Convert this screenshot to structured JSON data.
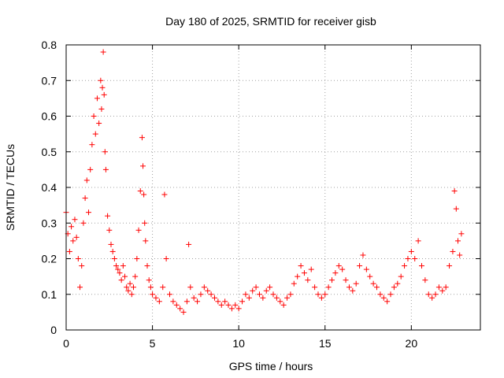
{
  "chart_data": {
    "type": "scatter",
    "title": "Day 180 of 2025, SRMTID for receiver gisb",
    "xlabel": "GPS time / hours",
    "ylabel": "SRMTID / TECUs",
    "xlim": [
      0,
      24
    ],
    "ylim": [
      0,
      0.8
    ],
    "xticks": [
      0,
      5,
      10,
      15,
      20
    ],
    "yticks": [
      0,
      0.1,
      0.2,
      0.3,
      0.4,
      0.5,
      0.6,
      0.7,
      0.8
    ],
    "xtick_labels": [
      "0",
      "5",
      "10",
      "15",
      "20"
    ],
    "ytick_labels": [
      "0",
      "0.1",
      "0.2",
      "0.3",
      "0.4",
      "0.5",
      "0.6",
      "0.7",
      "0.8"
    ],
    "grid": true,
    "marker": "+",
    "series": [
      {
        "name": "SRMTID",
        "color": "#ff0000",
        "x": [
          0.0,
          0.1,
          0.2,
          0.3,
          0.4,
          0.5,
          0.6,
          0.7,
          0.8,
          0.9,
          1.0,
          1.1,
          1.2,
          1.3,
          1.4,
          1.5,
          1.6,
          1.7,
          1.8,
          1.9,
          2.0,
          2.05,
          2.1,
          2.15,
          2.2,
          2.25,
          2.3,
          2.4,
          2.5,
          2.6,
          2.7,
          2.8,
          2.9,
          3.0,
          3.1,
          3.2,
          3.3,
          3.4,
          3.5,
          3.6,
          3.7,
          3.8,
          3.9,
          4.0,
          4.1,
          4.2,
          4.3,
          4.4,
          4.45,
          4.5,
          4.55,
          4.6,
          4.7,
          4.8,
          4.9,
          5.0,
          5.2,
          5.4,
          5.6,
          5.7,
          5.8,
          6.0,
          6.2,
          6.4,
          6.6,
          6.8,
          7.0,
          7.1,
          7.2,
          7.4,
          7.6,
          7.8,
          8.0,
          8.2,
          8.4,
          8.6,
          8.8,
          9.0,
          9.2,
          9.4,
          9.6,
          9.8,
          10.0,
          10.2,
          10.4,
          10.6,
          10.8,
          11.0,
          11.2,
          11.4,
          11.6,
          11.8,
          12.0,
          12.2,
          12.4,
          12.6,
          12.8,
          13.0,
          13.2,
          13.4,
          13.6,
          13.8,
          14.0,
          14.2,
          14.4,
          14.6,
          14.8,
          15.0,
          15.2,
          15.4,
          15.6,
          15.8,
          16.0,
          16.2,
          16.4,
          16.6,
          16.8,
          17.0,
          17.2,
          17.4,
          17.6,
          17.8,
          18.0,
          18.2,
          18.4,
          18.6,
          18.8,
          19.0,
          19.2,
          19.4,
          19.6,
          19.8,
          20.0,
          20.2,
          20.4,
          20.6,
          20.8,
          21.0,
          21.2,
          21.4,
          21.6,
          21.8,
          22.0,
          22.2,
          22.4,
          22.5,
          22.6,
          22.7,
          22.8,
          22.9
        ],
        "y": [
          0.33,
          0.27,
          0.22,
          0.29,
          0.25,
          0.31,
          0.26,
          0.2,
          0.12,
          0.18,
          0.3,
          0.37,
          0.42,
          0.33,
          0.45,
          0.52,
          0.6,
          0.55,
          0.65,
          0.58,
          0.7,
          0.62,
          0.68,
          0.78,
          0.66,
          0.5,
          0.45,
          0.32,
          0.28,
          0.24,
          0.22,
          0.2,
          0.18,
          0.17,
          0.16,
          0.14,
          0.18,
          0.15,
          0.12,
          0.11,
          0.13,
          0.1,
          0.12,
          0.15,
          0.2,
          0.28,
          0.39,
          0.54,
          0.46,
          0.38,
          0.3,
          0.25,
          0.18,
          0.14,
          0.12,
          0.1,
          0.09,
          0.08,
          0.12,
          0.38,
          0.2,
          0.1,
          0.08,
          0.07,
          0.06,
          0.05,
          0.08,
          0.24,
          0.12,
          0.09,
          0.08,
          0.1,
          0.12,
          0.11,
          0.1,
          0.09,
          0.08,
          0.07,
          0.08,
          0.07,
          0.06,
          0.07,
          0.06,
          0.08,
          0.1,
          0.09,
          0.11,
          0.12,
          0.1,
          0.09,
          0.11,
          0.12,
          0.1,
          0.09,
          0.08,
          0.07,
          0.09,
          0.1,
          0.13,
          0.15,
          0.18,
          0.16,
          0.14,
          0.17,
          0.12,
          0.1,
          0.09,
          0.1,
          0.12,
          0.14,
          0.16,
          0.18,
          0.17,
          0.14,
          0.12,
          0.11,
          0.13,
          0.18,
          0.21,
          0.17,
          0.15,
          0.13,
          0.12,
          0.1,
          0.09,
          0.08,
          0.1,
          0.12,
          0.13,
          0.15,
          0.18,
          0.2,
          0.22,
          0.2,
          0.25,
          0.18,
          0.14,
          0.1,
          0.09,
          0.1,
          0.12,
          0.11,
          0.12,
          0.18,
          0.22,
          0.39,
          0.34,
          0.25,
          0.21,
          0.27
        ]
      }
    ]
  }
}
